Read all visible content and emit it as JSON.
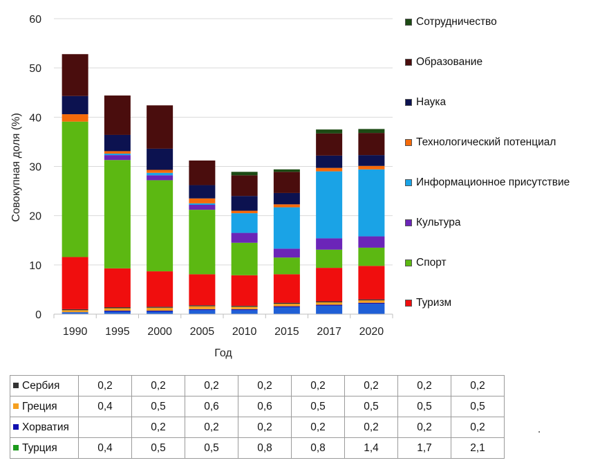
{
  "chart_data": {
    "type": "bar",
    "stacked": true,
    "xlabel": "Год",
    "ylabel": "Совокупная доля (%)",
    "ylim": [
      0,
      60
    ],
    "yticks": [
      0,
      10,
      20,
      30,
      40,
      50,
      60
    ],
    "grid": true,
    "legend_position": "right",
    "categories": [
      "1990",
      "1995",
      "2000",
      "2005",
      "2010",
      "2015",
      "2017",
      "2020"
    ],
    "series": [
      {
        "name": "Турция",
        "color": "#1f5fd6",
        "values": [
          0.4,
          0.5,
          0.5,
          0.8,
          0.8,
          1.4,
          1.7,
          2.1
        ],
        "in_legend": false
      },
      {
        "name": "Хорватия",
        "color": "#1010b0",
        "values": [
          0,
          0.2,
          0.2,
          0.2,
          0.2,
          0.2,
          0.2,
          0.2
        ],
        "in_legend": false
      },
      {
        "name": "Греция",
        "color": "#f5a020",
        "values": [
          0.4,
          0.5,
          0.6,
          0.6,
          0.5,
          0.5,
          0.5,
          0.5
        ],
        "in_legend": false
      },
      {
        "name": "Сербия",
        "color": "#333333",
        "values": [
          0.2,
          0.2,
          0.2,
          0.2,
          0.2,
          0.2,
          0.2,
          0.2
        ],
        "in_legend": false
      },
      {
        "name": "Туризм",
        "color": "#f00e0e",
        "values": [
          10.6,
          7.9,
          7.2,
          6.3,
          6.2,
          5.8,
          6.8,
          6.8
        ],
        "in_legend": true
      },
      {
        "name": "Спорт",
        "color": "#5cb812",
        "values": [
          27.5,
          22.0,
          18.5,
          13.1,
          6.6,
          3.4,
          3.7,
          3.7
        ],
        "in_legend": true
      },
      {
        "name": "Культура",
        "color": "#6b25b8",
        "values": [
          0,
          1.0,
          1.0,
          1.0,
          2.0,
          1.8,
          2.3,
          2.3
        ],
        "in_legend": true
      },
      {
        "name": "Информационное присутствие",
        "color": "#1aa3e6",
        "values": [
          0,
          0.3,
          0.5,
          0.3,
          4.0,
          8.4,
          13.6,
          13.6
        ],
        "in_legend": true
      },
      {
        "name": "Технологический потенциал",
        "color": "#f56a0a",
        "values": [
          1.5,
          0.5,
          0.6,
          1.0,
          0.5,
          0.6,
          0.7,
          0.7
        ],
        "in_legend": true
      },
      {
        "name": "Наука",
        "color": "#0c1250",
        "values": [
          3.7,
          3.3,
          4.3,
          2.7,
          3.0,
          2.3,
          2.5,
          2.2
        ],
        "in_legend": true
      },
      {
        "name": "Образование",
        "color": "#4a0d0d",
        "values": [
          8.5,
          8.0,
          8.8,
          5.0,
          4.2,
          4.3,
          4.5,
          4.5
        ],
        "in_legend": true
      },
      {
        "name": "Сотрудничество",
        "color": "#1c4a14",
        "values": [
          0,
          0,
          0,
          0,
          0.7,
          0.5,
          0.8,
          0.8
        ],
        "in_legend": true
      }
    ]
  },
  "legend": [
    {
      "label": "Сотрудничество",
      "color": "#1c4a14"
    },
    {
      "label": "Образование",
      "color": "#4a0d0d"
    },
    {
      "label": "Наука",
      "color": "#0c1250"
    },
    {
      "label": "Технологический потенциал",
      "color": "#f56a0a"
    },
    {
      "label": "Информационное присутствие",
      "color": "#1aa3e6"
    },
    {
      "label": "Культура",
      "color": "#6b25b8"
    },
    {
      "label": "Спорт",
      "color": "#5cb812"
    },
    {
      "label": "Туризм",
      "color": "#f00e0e"
    }
  ],
  "table": {
    "rows": [
      {
        "label": "Сербия",
        "color": "#333333",
        "values": [
          "0,2",
          "0,2",
          "0,2",
          "0,2",
          "0,2",
          "0,2",
          "0,2",
          "0,2"
        ]
      },
      {
        "label": "Греция",
        "color": "#f5a020",
        "values": [
          "0,4",
          "0,5",
          "0,6",
          "0,6",
          "0,5",
          "0,5",
          "0,5",
          "0,5"
        ]
      },
      {
        "label": "Хорватия",
        "color": "#1010b0",
        "values": [
          "",
          "0,2",
          "0,2",
          "0,2",
          "0,2",
          "0,2",
          "0,2",
          "0,2"
        ]
      },
      {
        "label": "Турция",
        "color": "#1c9a1c",
        "values": [
          "0,4",
          "0,5",
          "0,5",
          "0,8",
          "0,8",
          "1,4",
          "1,7",
          "2,1"
        ]
      }
    ]
  },
  "stray_mark": "."
}
